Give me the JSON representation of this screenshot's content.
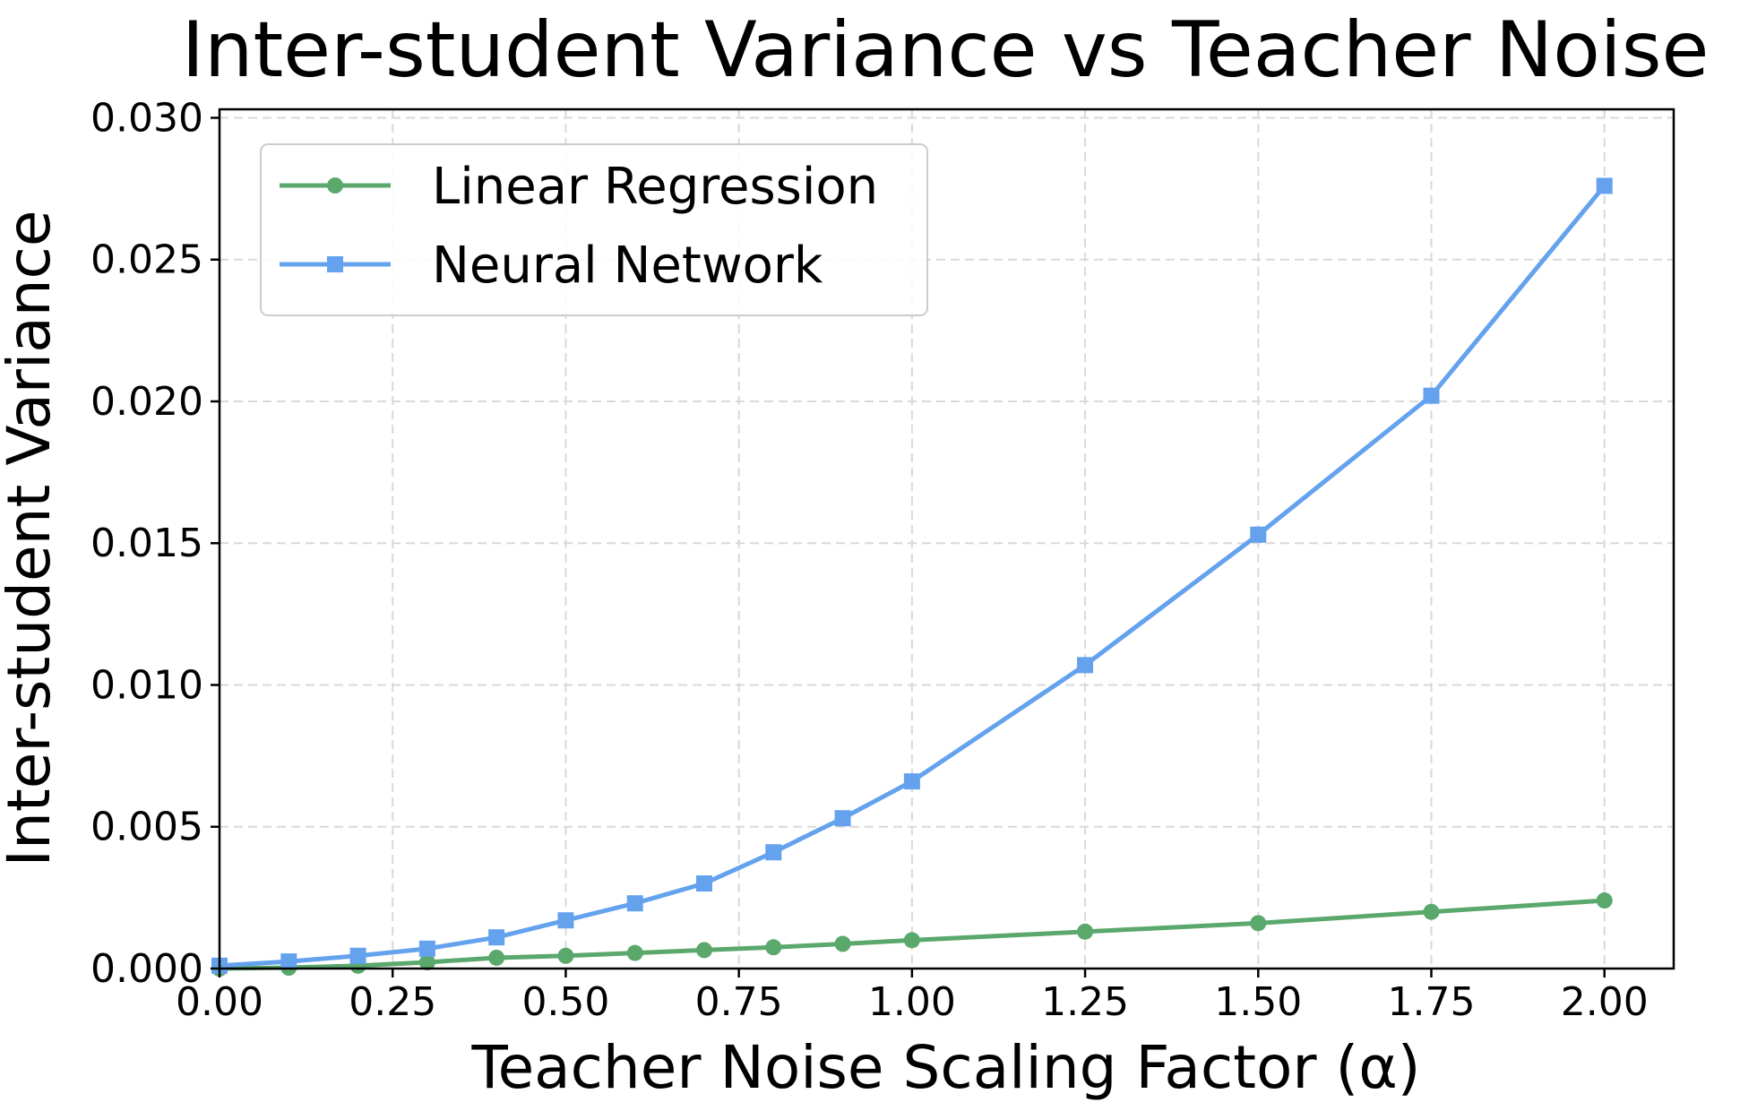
{
  "chart_data": {
    "type": "line",
    "title": "Inter-student Variance vs Teacher Noise",
    "xlabel": "Teacher Noise Scaling Factor (α)",
    "ylabel": "Inter-student Variance",
    "xlim": [
      0.0,
      2.1
    ],
    "ylim": [
      0.0,
      0.0303
    ],
    "xticks": [
      "0.00",
      "0.25",
      "0.50",
      "0.75",
      "1.00",
      "1.25",
      "1.50",
      "1.75",
      "2.00"
    ],
    "yticks": [
      "0.000",
      "0.005",
      "0.010",
      "0.015",
      "0.020",
      "0.025",
      "0.030"
    ],
    "grid": true,
    "legend_position": "upper-left",
    "series": [
      {
        "name": "Linear Regression",
        "color": "#5aa86c",
        "marker": "circle",
        "x": [
          0.0,
          0.1,
          0.2,
          0.3,
          0.4,
          0.5,
          0.6,
          0.7,
          0.8,
          0.9,
          1.0,
          1.25,
          1.5,
          1.75,
          2.0
        ],
        "y": [
          0.0,
          3e-05,
          0.0001,
          0.00022,
          0.00038,
          0.00045,
          0.00055,
          0.00065,
          0.00075,
          0.00087,
          0.001,
          0.0013,
          0.0016,
          0.002,
          0.0024
        ]
      },
      {
        "name": "Neural Network",
        "color": "#64a2ee",
        "marker": "square",
        "x": [
          0.0,
          0.1,
          0.2,
          0.3,
          0.4,
          0.5,
          0.6,
          0.7,
          0.8,
          0.9,
          1.0,
          1.25,
          1.5,
          1.75,
          2.0
        ],
        "y": [
          0.0001,
          0.00025,
          0.00045,
          0.0007,
          0.0011,
          0.0017,
          0.0023,
          0.003,
          0.0041,
          0.0053,
          0.0066,
          0.0107,
          0.0153,
          0.0202,
          0.0276
        ]
      }
    ]
  }
}
